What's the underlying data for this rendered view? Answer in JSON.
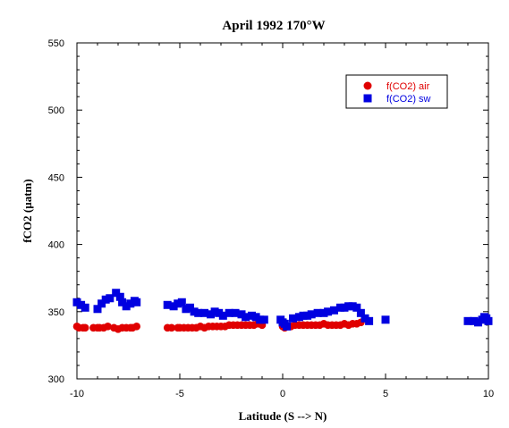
{
  "chart_data": {
    "type": "scatter",
    "title": "April 1992 170°W",
    "xlabel": "Latitude (S --> N)",
    "ylabel": "fCO2 (µatm)",
    "xlim": [
      -10,
      10
    ],
    "ylim": [
      300,
      550
    ],
    "xticks": [
      -10,
      -5,
      0,
      5,
      10
    ],
    "yticks": [
      300,
      350,
      400,
      450,
      500,
      550
    ],
    "grid": false,
    "legend_position": "top-right",
    "series": [
      {
        "name": "f(CO2) air",
        "color": "#e00000",
        "marker": "circle",
        "points": [
          [
            -10.0,
            339
          ],
          [
            -9.9,
            338
          ],
          [
            -9.7,
            338
          ],
          [
            -9.6,
            338
          ],
          [
            -9.2,
            338
          ],
          [
            -9.0,
            338
          ],
          [
            -8.9,
            338
          ],
          [
            -8.7,
            338
          ],
          [
            -8.5,
            339
          ],
          [
            -8.2,
            338
          ],
          [
            -8.0,
            337
          ],
          [
            -7.8,
            338
          ],
          [
            -7.6,
            338
          ],
          [
            -7.4,
            338
          ],
          [
            -7.3,
            338
          ],
          [
            -7.1,
            339
          ],
          [
            -5.6,
            338
          ],
          [
            -5.4,
            338
          ],
          [
            -5.1,
            338
          ],
          [
            -5.0,
            338
          ],
          [
            -4.8,
            338
          ],
          [
            -4.6,
            338
          ],
          [
            -4.4,
            338
          ],
          [
            -4.2,
            338
          ],
          [
            -4.0,
            339
          ],
          [
            -3.8,
            338
          ],
          [
            -3.6,
            339
          ],
          [
            -3.4,
            339
          ],
          [
            -3.2,
            339
          ],
          [
            -3.0,
            339
          ],
          [
            -2.8,
            339
          ],
          [
            -2.6,
            340
          ],
          [
            -2.4,
            340
          ],
          [
            -2.2,
            340
          ],
          [
            -2.0,
            340
          ],
          [
            -1.8,
            340
          ],
          [
            -1.6,
            340
          ],
          [
            -1.4,
            340
          ],
          [
            -1.2,
            341
          ],
          [
            -1.0,
            340
          ],
          [
            0.0,
            339
          ],
          [
            0.1,
            338
          ],
          [
            0.4,
            339
          ],
          [
            0.6,
            340
          ],
          [
            0.8,
            340
          ],
          [
            1.0,
            340
          ],
          [
            1.2,
            340
          ],
          [
            1.4,
            340
          ],
          [
            1.6,
            340
          ],
          [
            1.8,
            340
          ],
          [
            2.0,
            341
          ],
          [
            2.2,
            340
          ],
          [
            2.4,
            340
          ],
          [
            2.6,
            340
          ],
          [
            2.8,
            340
          ],
          [
            3.0,
            341
          ],
          [
            3.2,
            340
          ],
          [
            3.4,
            341
          ],
          [
            3.6,
            341
          ],
          [
            3.8,
            342
          ]
        ]
      },
      {
        "name": "f(CO2) sw",
        "color": "#0000e0",
        "marker": "square",
        "points": [
          [
            -10.0,
            357
          ],
          [
            -9.8,
            355
          ],
          [
            -9.6,
            353
          ],
          [
            -9.0,
            352
          ],
          [
            -8.8,
            356
          ],
          [
            -8.6,
            359
          ],
          [
            -8.4,
            360
          ],
          [
            -8.1,
            364
          ],
          [
            -7.9,
            361
          ],
          [
            -7.8,
            357
          ],
          [
            -7.6,
            354
          ],
          [
            -7.4,
            356
          ],
          [
            -7.2,
            358
          ],
          [
            -7.1,
            357
          ],
          [
            -5.6,
            355
          ],
          [
            -5.3,
            354
          ],
          [
            -5.1,
            356
          ],
          [
            -4.9,
            357
          ],
          [
            -4.7,
            352
          ],
          [
            -4.5,
            353
          ],
          [
            -4.3,
            350
          ],
          [
            -4.1,
            349
          ],
          [
            -3.8,
            349
          ],
          [
            -3.5,
            348
          ],
          [
            -3.3,
            350
          ],
          [
            -3.1,
            349
          ],
          [
            -2.9,
            347
          ],
          [
            -2.6,
            349
          ],
          [
            -2.3,
            349
          ],
          [
            -2.0,
            348
          ],
          [
            -1.8,
            346
          ],
          [
            -1.5,
            347
          ],
          [
            -1.3,
            346
          ],
          [
            -1.1,
            344
          ],
          [
            -0.9,
            344
          ],
          [
            -0.1,
            344
          ],
          [
            0.0,
            342
          ],
          [
            0.1,
            341
          ],
          [
            0.2,
            339
          ],
          [
            0.5,
            345
          ],
          [
            0.8,
            346
          ],
          [
            1.0,
            347
          ],
          [
            1.2,
            347
          ],
          [
            1.4,
            348
          ],
          [
            1.7,
            349
          ],
          [
            2.0,
            349
          ],
          [
            2.2,
            350
          ],
          [
            2.5,
            351
          ],
          [
            2.8,
            353
          ],
          [
            3.0,
            353
          ],
          [
            3.2,
            354
          ],
          [
            3.4,
            354
          ],
          [
            3.6,
            353
          ],
          [
            3.8,
            349
          ],
          [
            4.0,
            345
          ],
          [
            4.2,
            343
          ],
          [
            5.0,
            344
          ],
          [
            9.0,
            343
          ],
          [
            9.3,
            343
          ],
          [
            9.5,
            342
          ],
          [
            9.7,
            344
          ],
          [
            9.8,
            346
          ],
          [
            9.9,
            345
          ],
          [
            10.0,
            343
          ]
        ]
      }
    ]
  }
}
